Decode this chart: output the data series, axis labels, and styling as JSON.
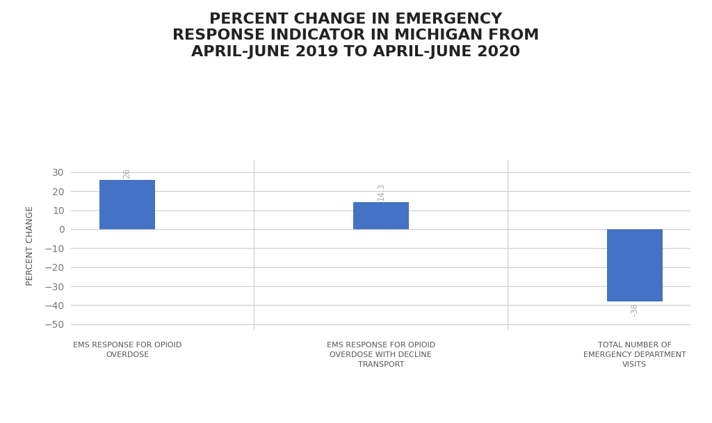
{
  "title": "PERCENT CHANGE IN EMERGENCY\nRESPONSE INDICATOR IN MICHIGAN FROM\nAPRIL-JUNE 2019 TO APRIL-JUNE 2020",
  "categories": [
    "EMS RESPONSE FOR OPIOID\nOVERDOSE",
    "EMS RESPONSE FOR OPIOID\nOVERDOSE WITH DECLINE\nTRANSPORT",
    "TOTAL NUMBER OF\nEMERGENCY DEPARTMENT\nVISITS"
  ],
  "values": [
    26,
    14.3,
    -38
  ],
  "bar_color": "#4472C4",
  "ylabel": "PERCENT CHANGE",
  "ylim": [
    -53,
    36
  ],
  "yticks": [
    -50,
    -40,
    -30,
    -20,
    -10,
    0,
    10,
    20,
    30
  ],
  "background_color": "#ffffff",
  "grid_color": "#cccccc",
  "title_fontsize": 16,
  "label_fontsize": 8,
  "ylabel_fontsize": 9,
  "annotation_color": "#aaaaaa",
  "annotation_fontsize": 8.5,
  "bar_width": 0.22
}
